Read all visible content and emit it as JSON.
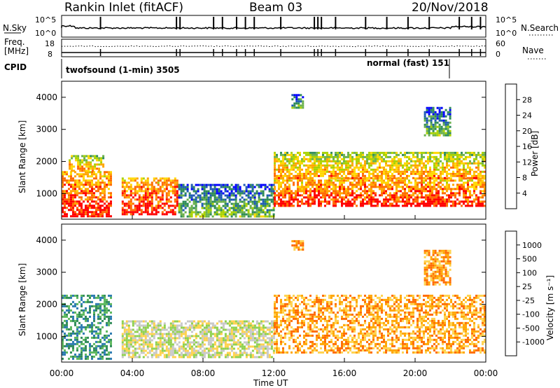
{
  "header": {
    "station": "Rankin Inlet (fitACF)",
    "beam": "Beam 03",
    "date": "20/Nov/2018"
  },
  "status_panel": {
    "nsky_label": "N.Sky",
    "nsky_ticks": [
      "10^5",
      "10^0"
    ],
    "nsearch_label": "N.Search",
    "nsearch_ticks": [
      "10^5",
      "10^0"
    ],
    "freq_label": "Freq.",
    "freq_unit": "[MHz]",
    "freq_ticks": [
      "18",
      "8"
    ],
    "nave_label": "Nave",
    "nave_ticks": [
      "60",
      "0"
    ],
    "cpid_label": "CPID",
    "cpid_segments": [
      {
        "label": "twofsound (1-min) 3505",
        "start_hour": 0,
        "end_hour": 21.9
      },
      {
        "label": "normal (fast) 151",
        "start_hour": 21.9,
        "end_hour": 24
      }
    ]
  },
  "chart_data": [
    {
      "type": "heatmap",
      "name": "power",
      "ylabel": "Slant Range [km]",
      "xlim": [
        0,
        24
      ],
      "ylim": [
        200,
        4500
      ],
      "yticks": [
        "1000",
        "2000",
        "3000",
        "4000"
      ],
      "colorbar": {
        "label": "Power [dB]",
        "ticks": [
          "28",
          "24",
          "20",
          "16",
          "12",
          "8",
          "4"
        ],
        "range": [
          0,
          30
        ],
        "colors": [
          "#0000ff",
          "#1e5ab4",
          "#2e8b57",
          "#6ab04c",
          "#a8d200",
          "#ffd700",
          "#ffa500",
          "#ff6a00",
          "#ff0000"
        ]
      },
      "echo_regions": [
        {
          "t0": 0.0,
          "t1": 2.8,
          "r0": 300,
          "r1": 1700,
          "level": "high"
        },
        {
          "t0": 0.4,
          "t1": 2.4,
          "r0": 1700,
          "r1": 2200,
          "level": "mid"
        },
        {
          "t0": 3.4,
          "t1": 6.6,
          "r0": 350,
          "r1": 1500,
          "level": "high"
        },
        {
          "t0": 6.6,
          "t1": 12.0,
          "r0": 300,
          "r1": 1300,
          "level": "low"
        },
        {
          "t0": 12.0,
          "t1": 24.0,
          "r0": 600,
          "r1": 1500,
          "level": "high"
        },
        {
          "t0": 12.0,
          "t1": 24.0,
          "r0": 1500,
          "r1": 2300,
          "level": "mid"
        },
        {
          "t0": 20.5,
          "t1": 22.0,
          "r0": 2800,
          "r1": 3700,
          "level": "low"
        },
        {
          "t0": 13.0,
          "t1": 13.6,
          "r0": 3700,
          "r1": 4100,
          "level": "low"
        }
      ]
    },
    {
      "type": "heatmap",
      "name": "velocity",
      "ylabel": "Slant Range [km]",
      "xlim": [
        0,
        24
      ],
      "ylim": [
        200,
        4500
      ],
      "yticks": [
        "1000",
        "2000",
        "3000",
        "4000"
      ],
      "colorbar": {
        "label": "Velocity [m s⁻¹]",
        "ticks": [
          "1000",
          "500",
          "100",
          "25",
          "-25",
          "-100",
          "-500",
          "-1000"
        ],
        "colors": [
          "#1f3fbf",
          "#2a7ab0",
          "#2e8b57",
          "#5cb85c",
          "#8fd14f",
          "#c8c8c8",
          "#ffd24d",
          "#ffa500",
          "#ff6a00",
          "#ff2000"
        ]
      },
      "echo_regions": [
        {
          "t0": 0.0,
          "t1": 2.8,
          "r0": 300,
          "r1": 2300,
          "level": "positive"
        },
        {
          "t0": 3.4,
          "t1": 12.0,
          "r0": 350,
          "r1": 1500,
          "level": "mixed"
        },
        {
          "t0": 12.0,
          "t1": 24.0,
          "r0": 500,
          "r1": 2300,
          "level": "negative"
        },
        {
          "t0": 20.5,
          "t1": 22.0,
          "r0": 2600,
          "r1": 3700,
          "level": "negative"
        },
        {
          "t0": 13.0,
          "t1": 13.6,
          "r0": 3700,
          "r1": 4000,
          "level": "negative"
        }
      ]
    }
  ],
  "xaxis": {
    "label": "Time UT",
    "ticks": [
      "00:00",
      "04:00",
      "08:00",
      "12:00",
      "16:00",
      "20:00",
      "00:00"
    ]
  }
}
